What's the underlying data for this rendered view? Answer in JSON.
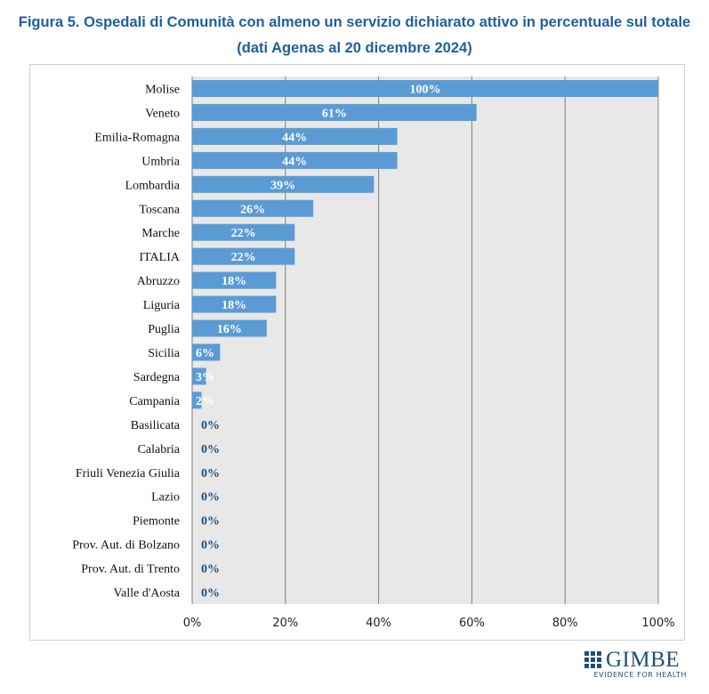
{
  "title_line1": "Figura 5. Ospedali di Comunità con almeno un servizio dichiarato attivo in percentuale sul totale",
  "title_line2": "(dati Agenas al 20 dicembre 2024)",
  "colors": {
    "bar": "#5b9bd5",
    "plot_bg": "#e8e8e8",
    "grid": "#7f7f7f",
    "title": "#1f5f9e",
    "value_outside": "#1f4e79"
  },
  "chart_data": {
    "type": "bar",
    "orientation": "horizontal",
    "categories": [
      "Molise",
      "Veneto",
      "Emilia-Romagna",
      "Umbria",
      "Lombardia",
      "Toscana",
      "Marche",
      "ITALIA",
      "Abruzzo",
      "Liguria",
      "Puglia",
      "Sicilia",
      "Sardegna",
      "Campania",
      "Basilicata",
      "Calabria",
      "Friuli Venezia Giulia",
      "Lazio",
      "Piemonte",
      "Prov. Aut. di Bolzano",
      "Prov. Aut. di Trento",
      "Valle d'Aosta"
    ],
    "values": [
      100,
      61,
      44,
      44,
      39,
      26,
      22,
      22,
      18,
      18,
      16,
      6,
      3,
      2,
      0,
      0,
      0,
      0,
      0,
      0,
      0,
      0
    ],
    "value_labels": [
      "100%",
      "61%",
      "44%",
      "44%",
      "39%",
      "26%",
      "22%",
      "22%",
      "18%",
      "18%",
      "16%",
      "6%",
      "3%",
      "2%",
      "0%",
      "0%",
      "0%",
      "0%",
      "0%",
      "0%",
      "0%",
      "0%"
    ],
    "xlim": [
      0,
      100
    ],
    "x_ticks": [
      0,
      20,
      40,
      60,
      80,
      100
    ],
    "x_tick_labels": [
      "0%",
      "20%",
      "40%",
      "60%",
      "80%",
      "100%"
    ],
    "grid": true
  },
  "logo": {
    "name": "GIMBE",
    "tagline": "EVIDENCE FOR HEALTH",
    "icon": "gimbe-grid-icon"
  }
}
